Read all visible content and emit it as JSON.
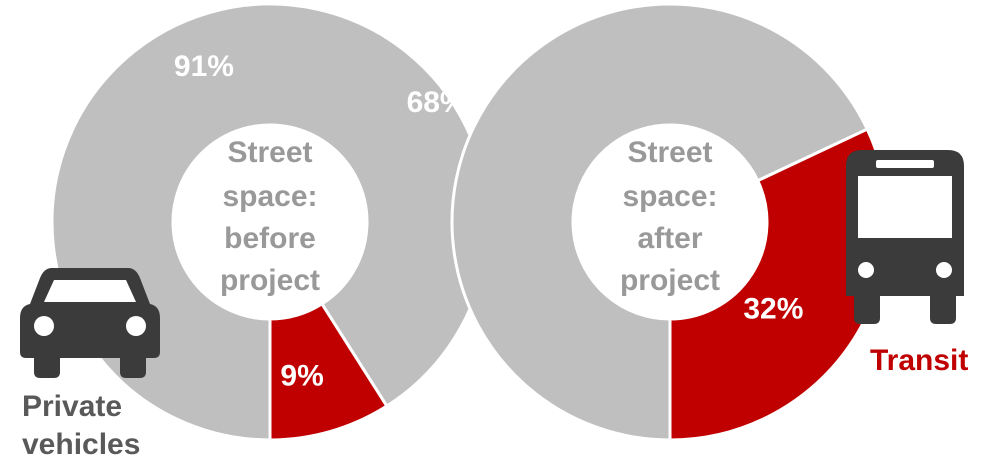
{
  "chart_data": [
    {
      "type": "pie",
      "center_label": [
        "Street",
        "space:",
        "before",
        "project"
      ],
      "slices": [
        {
          "label": "Private vehicles",
          "value": 91,
          "value_label": "91%",
          "color": "#bfbfbf"
        },
        {
          "label": "Transit",
          "value": 9,
          "value_label": "9%",
          "color": "#c00000"
        }
      ]
    },
    {
      "type": "pie",
      "center_label": [
        "Street",
        "space:",
        "after",
        "project"
      ],
      "slices": [
        {
          "label": "Private vehicles",
          "value": 68,
          "value_label": "68%",
          "color": "#bfbfbf"
        },
        {
          "label": "Transit",
          "value": 32,
          "value_label": "32%",
          "color": "#c00000"
        }
      ]
    }
  ],
  "legend": {
    "private_vehicles": {
      "lines": [
        "Private",
        "vehicles"
      ],
      "icon": "car-icon",
      "color": "#595959"
    },
    "transit": {
      "lines": [
        "Transit"
      ],
      "icon": "bus-icon",
      "color": "#c00000"
    }
  },
  "colors": {
    "center_text": "#999999",
    "value_text": "#ffffff",
    "icon": "#3b3b3b"
  }
}
